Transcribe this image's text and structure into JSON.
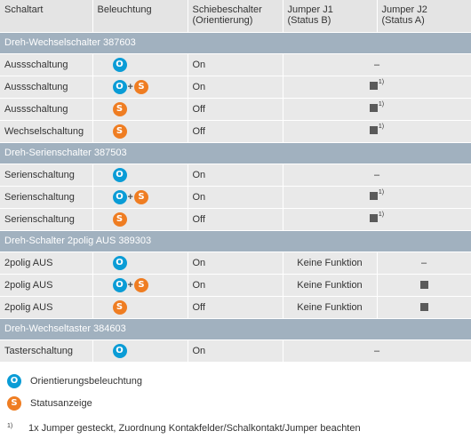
{
  "header": {
    "schaltart": "Schaltart",
    "beleuchtung": "Beleuchtung",
    "schiebe": "Schiebeschalter",
    "schiebe_sub": "(Orientierung)",
    "j1": "Jumper J1",
    "j1_sub": "(Status B)",
    "j2": "Jumper J2",
    "j2_sub": "(Status A)"
  },
  "symbols": {
    "o": "O",
    "s": "S",
    "plus": "+",
    "dash": "–",
    "footnote_mark": "1)"
  },
  "colors": {
    "orientation": "#0a9cd6",
    "status": "#ef7d22",
    "section_bg": "#a1b1bf",
    "row_bg": "#e9e9e9"
  },
  "sections": [
    {
      "title": "Dreh-Wechselschalter 387603",
      "rows": [
        {
          "type": "Aussschaltung",
          "lighting": [
            "o"
          ],
          "slider": "On",
          "jumpers": "merged-dash"
        },
        {
          "type": "Aussschaltung",
          "lighting": [
            "o",
            "s"
          ],
          "slider": "On",
          "jumpers": "merged-square-fn"
        },
        {
          "type": "Aussschaltung",
          "lighting": [
            "s"
          ],
          "slider": "Off",
          "jumpers": "merged-square-fn"
        },
        {
          "type": "Wechselschaltung",
          "lighting": [
            "s"
          ],
          "slider": "Off",
          "jumpers": "merged-square-fn"
        }
      ]
    },
    {
      "title": "Dreh-Serienschalter 387503",
      "rows": [
        {
          "type": "Serienschaltung",
          "lighting": [
            "o"
          ],
          "slider": "On",
          "jumpers": "merged-dash"
        },
        {
          "type": "Serienschaltung",
          "lighting": [
            "o",
            "s"
          ],
          "slider": "On",
          "jumpers": "merged-square-fn"
        },
        {
          "type": "Serienschaltung",
          "lighting": [
            "s"
          ],
          "slider": "Off",
          "jumpers": "merged-square-fn"
        }
      ]
    },
    {
      "title": "Dreh-Schalter 2polig AUS 389303",
      "rows": [
        {
          "type": "2polig AUS",
          "lighting": [
            "o"
          ],
          "slider": "On",
          "j1": "Keine Funktion",
          "j2": "dash"
        },
        {
          "type": "2polig AUS",
          "lighting": [
            "o",
            "s"
          ],
          "slider": "On",
          "j1": "Keine Funktion",
          "j2": "square"
        },
        {
          "type": "2polig AUS",
          "lighting": [
            "s"
          ],
          "slider": "Off",
          "j1": "Keine Funktion",
          "j2": "square"
        }
      ]
    },
    {
      "title": "Dreh-Wechseltaster 384603",
      "rows": [
        {
          "type": "Tasterschaltung",
          "lighting": [
            "o"
          ],
          "slider": "On",
          "jumpers": "merged-dash"
        }
      ]
    }
  ],
  "legend": {
    "o_label": "Orientierungsbeleuchtung",
    "s_label": "Statusanzeige",
    "footnote_mark": "1)",
    "footnote_text": "1x Jumper gesteckt, Zuordnung Kontakfelder/Schalkontakt/Jumper beachten"
  }
}
